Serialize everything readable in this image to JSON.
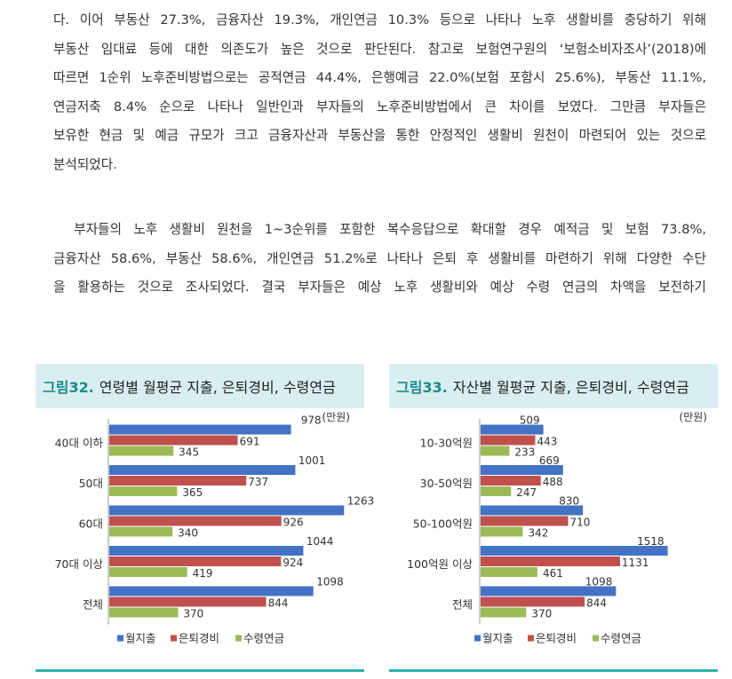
{
  "paragraphs": [
    {
      "lines": [
        "다. 이어 부동산 27.3%, 금융자산 19.3%, 개인연금 10.3% 등으로 나타나 노후 생활비를 충당하기 위해",
        "부동산 임대료 등에 대한 의존도가 높은 것으로 판단된다. 참고로 보험연구원의 ‘보험소비자조사’(2018)에",
        "따르면 1순위 노후준비방법으로는 공적연금 44.4%, 은행예금 22.0%(보험 포함시 25.6%), 부동산 11.1%,",
        "연금저축 8.4% 순으로 나타나 일반인과 부자들의 노후준비방법에서 큰 차이를 보였다. 그만큼 부자들은",
        "보유한 현금 및 예금 규모가 크고 금융자산과 부동산을 통한 안정적인 생활비 원천이 마련되어 있는 것으로",
        "분석되었다."
      ]
    },
    {
      "lines": [
        "　부자들의 노후 생활비 원천을 1~3순위를 포함한 복수응답으로 확대할 경우 예적금 및 보험 73.8%,",
        "금융자산 58.6%, 부동산 58.6%, 개인연금 51.2%로 나타나 은퇴 후 생활비를 마련하기 위해 다양한 수단",
        "을 활용하는 것으로 조사되었다. 결국 부자들은 예상 노후 생활비와 예상 수령 연금의 차액을 보전하기"
      ]
    }
  ],
  "figures": [
    {
      "number": "그림32.",
      "title": "연령별 월평균 지출, 은퇴경비, 수령연금"
    },
    {
      "number": "그림33.",
      "title": "자산별 월평균 지출, 은퇴경비, 수령연금"
    }
  ],
  "chart_data": [
    {
      "type": "bar",
      "orientation": "horizontal",
      "unit_label": "(만원)",
      "categories": [
        "40대 이하",
        "50대",
        "60대",
        "70대 이상",
        "전체"
      ],
      "series": [
        {
          "name": "월지출",
          "color": "#4472c4",
          "values": [
            978,
            1001,
            1263,
            1044,
            1098
          ]
        },
        {
          "name": "은퇴경비",
          "color": "#c0504d",
          "values": [
            691,
            737,
            926,
            924,
            844
          ]
        },
        {
          "name": "수령연금",
          "color": "#9bbb59",
          "values": [
            345,
            365,
            340,
            419,
            370
          ]
        }
      ],
      "xlim": [
        0,
        1300
      ],
      "grid": false,
      "legend": "bottom"
    },
    {
      "type": "bar",
      "orientation": "horizontal",
      "unit_label": "(만원)",
      "categories": [
        "10-30억원",
        "30-50억원",
        "50-100억원",
        "100억원 이상",
        "전체"
      ],
      "series": [
        {
          "name": "월지출",
          "color": "#4472c4",
          "values": [
            509,
            669,
            830,
            1518,
            1098
          ]
        },
        {
          "name": "은퇴경비",
          "color": "#c0504d",
          "values": [
            443,
            488,
            710,
            1131,
            844
          ]
        },
        {
          "name": "수령연금",
          "color": "#9bbb59",
          "values": [
            233,
            247,
            342,
            461,
            370
          ]
        }
      ],
      "xlim": [
        0,
        1600
      ],
      "grid": false,
      "legend": "bottom"
    }
  ]
}
